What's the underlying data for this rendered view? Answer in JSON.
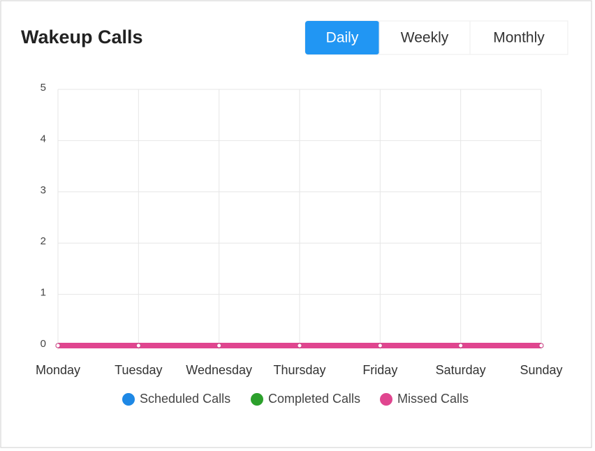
{
  "chart_data": {
    "type": "line",
    "title": "Wakeup Calls",
    "tabs": [
      "Daily",
      "Weekly",
      "Monthly"
    ],
    "active_tab": 0,
    "categories": [
      "Monday",
      "Tuesday",
      "Wednesday",
      "Thursday",
      "Friday",
      "Saturday",
      "Sunday"
    ],
    "series": [
      {
        "name": "Scheduled Calls",
        "color": "#1e88e5",
        "values": [
          0,
          0,
          0,
          0,
          0,
          0,
          0
        ]
      },
      {
        "name": "Completed Calls",
        "color": "#2ca02c",
        "values": [
          0,
          0,
          0,
          0,
          0,
          0,
          0
        ]
      },
      {
        "name": "Missed Calls",
        "color": "#e0458f",
        "values": [
          0,
          0,
          0,
          0,
          0,
          0,
          0
        ]
      }
    ],
    "ylim": [
      0,
      5
    ],
    "yticks": [
      0,
      1,
      2,
      3,
      4,
      5
    ],
    "grid": true,
    "legend": "bottom"
  }
}
